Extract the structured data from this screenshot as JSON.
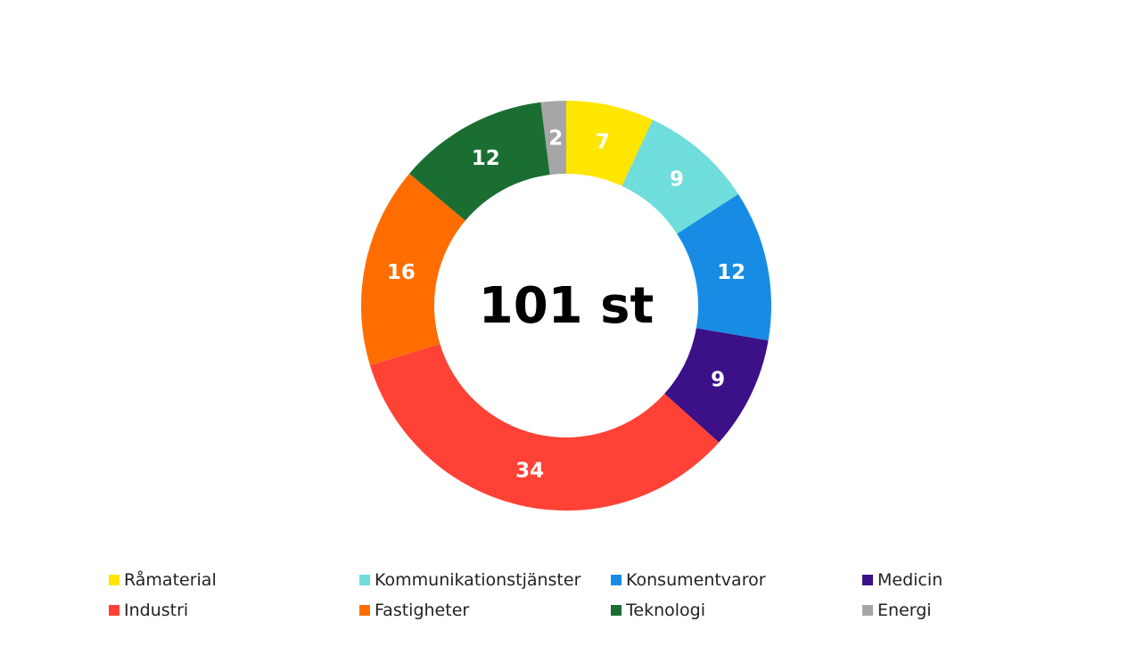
{
  "chart_data": {
    "type": "pie",
    "donut": true,
    "center_label": "101 st",
    "categories": [
      "Råmaterial",
      "Kommunikationstjänster",
      "Konsumentvaror",
      "Medicin",
      "Industri",
      "Fastigheter",
      "Teknologi",
      "Energi"
    ],
    "values": [
      7,
      9,
      12,
      9,
      34,
      16,
      12,
      2
    ],
    "colors": [
      "#FFE600",
      "#6FDDDB",
      "#188CE5",
      "#3C1087",
      "#FF4136",
      "#FF6D00",
      "#1A6E32",
      "#A6A6A6"
    ],
    "legend_position": "bottom",
    "legend_order": [
      "Råmaterial",
      "Kommunikationstjänster",
      "Konsumentvaror",
      "Medicin",
      "Industri",
      "Fastigheter",
      "Teknologi",
      "Energi"
    ]
  }
}
